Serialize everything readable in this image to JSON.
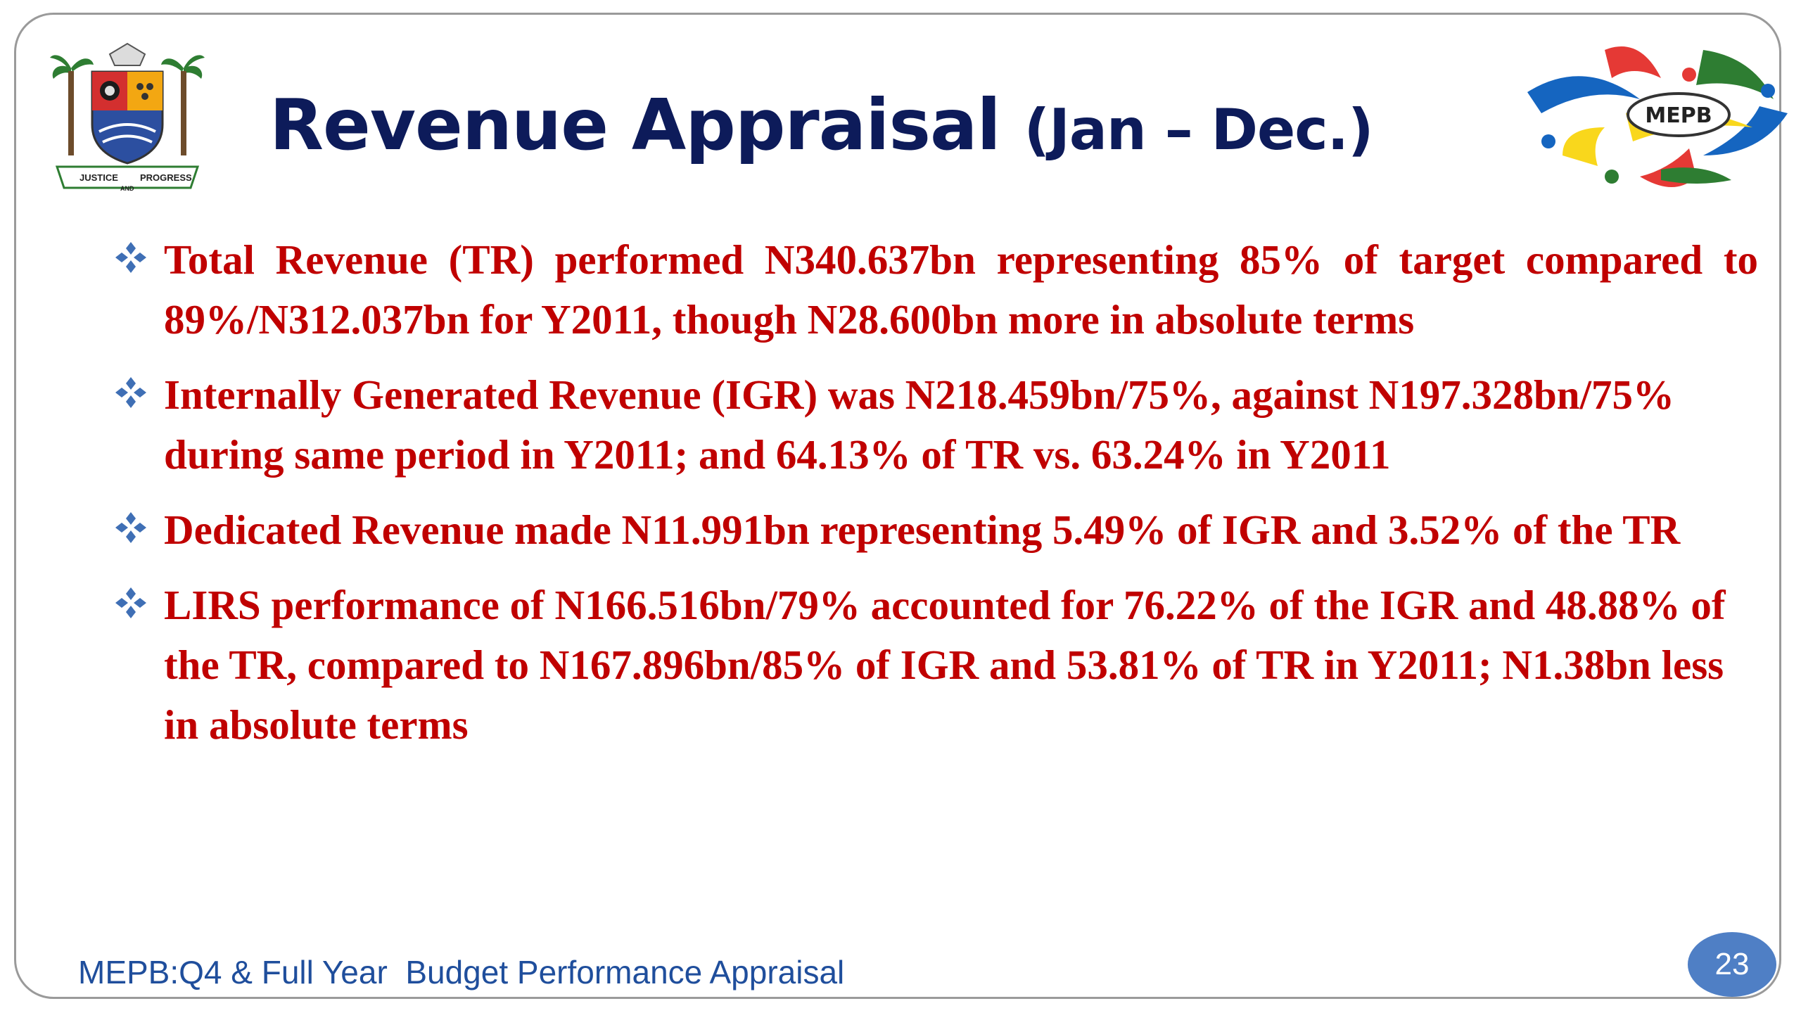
{
  "slide": {
    "title_main": "Revenue Appraisal",
    "title_paren": "(Jan – Dec.)",
    "bullets": [
      "Total Revenue (TR) performed N340.637bn representing 85% of target compared to 89%/N312.037bn for Y2011, though N28.600bn more in absolute terms",
      "Internally Generated Revenue (IGR) was N218.459bn/75%, against N197.328bn/75% during same period in Y2011; and 64.13% of TR vs. 63.24% in Y2011",
      "Dedicated Revenue made N11.991bn representing 5.49% of IGR and 3.52% of the TR",
      "LIRS performance of N166.516bn/79% accounted for 76.22% of the IGR and 48.88% of the TR, compared to N167.896bn/85%  of IGR and 53.81% of TR in Y2011; N1.38bn less in absolute terms"
    ],
    "footer": "MEPB:Q4 & Full Year  Budget Performance Appraisal",
    "page_number": "23",
    "right_logo_text": "MEPB",
    "left_logo_text_left": "JUSTICE",
    "left_logo_text_mid": "AND",
    "left_logo_text_right": "PROGRESS"
  },
  "colors": {
    "title": "#0d1b5a",
    "bullet_text": "#c00000",
    "bullet_icon": "#3f6fb5",
    "footer": "#1f4e9c",
    "badge": "#4f7fc5"
  },
  "icons": {
    "bullet": "four-diamond-bullet-icon",
    "left_logo": "state-coat-of-arms-logo",
    "right_logo": "mepb-logo"
  }
}
